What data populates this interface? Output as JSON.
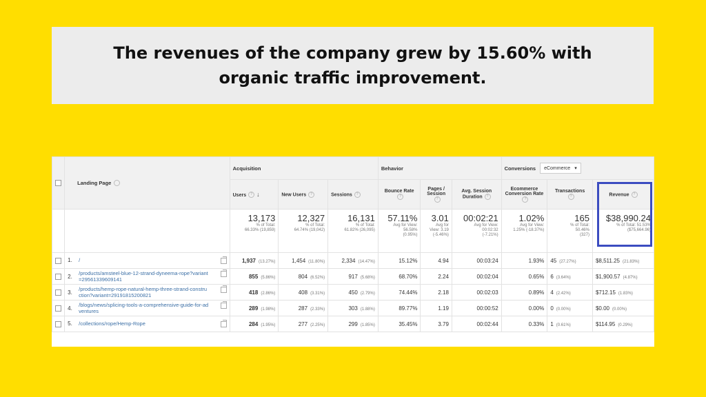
{
  "headline": "The revenues of the company grew by 15.60% with organic traffic improvement.",
  "colors": {
    "background": "#FFDE00",
    "highlight_box": "#3b4cc0",
    "link": "#3a6ea5"
  },
  "table": {
    "landing_page_header": "Landing Page",
    "groups": {
      "acquisition": "Acquisition",
      "behavior": "Behavior",
      "conversions": "Conversions"
    },
    "conversions_select": "eCommerce",
    "columns": {
      "users": "Users",
      "new_users": "New Users",
      "sessions": "Sessions",
      "bounce_rate": "Bounce Rate",
      "pages_session": "Pages / Session",
      "avg_session": "Avg. Session Duration",
      "ecom_rate": "Ecommerce Conversion Rate",
      "transactions": "Transactions",
      "revenue": "Revenue"
    },
    "totals": {
      "users": {
        "value": "13,173",
        "sub1": "% of Total:",
        "sub2": "66.33% (19,859)"
      },
      "new_users": {
        "value": "12,327",
        "sub1": "% of Total:",
        "sub2": "64.74% (19,042)"
      },
      "sessions": {
        "value": "16,131",
        "sub1": "% of Total:",
        "sub2": "61.82% (26,095)"
      },
      "bounce_rate": {
        "value": "57.11%",
        "sub1": "Avg for View:",
        "sub2": "56.58%",
        "sub3": "(0.95%)"
      },
      "pages_session": {
        "value": "3.01",
        "sub1": "Avg for",
        "sub2": "View: 3.19",
        "sub3": "(-5.46%)"
      },
      "avg_session": {
        "value": "00:02:21",
        "sub1": "Avg for View:",
        "sub2": "00:02:32",
        "sub3": "(-7.21%)"
      },
      "ecom_rate": {
        "value": "1.02%",
        "sub1": "Avg for View:",
        "sub2": "1.25% (-18.37%)"
      },
      "transactions": {
        "value": "165",
        "sub1": "% of Total:",
        "sub2": "50.46%",
        "sub3": "(327)"
      },
      "revenue": {
        "value": "$38,990.24",
        "sub1": "% of Total: 51.53%",
        "sub2": "($75,664.96)"
      }
    },
    "rows": [
      {
        "idx": "1.",
        "page": "/",
        "users": "1,937",
        "users_pct": "(13.27%)",
        "new_users": "1,454",
        "new_users_pct": "(11.80%)",
        "sessions": "2,334",
        "sessions_pct": "(14.47%)",
        "bounce": "15.12%",
        "pages": "4.94",
        "duration": "00:03:24",
        "ecom": "1.93%",
        "trans": "45",
        "trans_pct": "(27.27%)",
        "revenue": "$8,511.25",
        "revenue_pct": "(21.83%)"
      },
      {
        "idx": "2.",
        "page": "/products/amsteel-blue-12-strand-dyneema-rope?variant=29561339609141",
        "users": "855",
        "users_pct": "(5.86%)",
        "new_users": "804",
        "new_users_pct": "(6.52%)",
        "sessions": "917",
        "sessions_pct": "(5.68%)",
        "bounce": "68.70%",
        "pages": "2.24",
        "duration": "00:02:04",
        "ecom": "0.65%",
        "trans": "6",
        "trans_pct": "(3.64%)",
        "revenue": "$1,900.57",
        "revenue_pct": "(4.87%)"
      },
      {
        "idx": "3.",
        "page": "/products/hemp-rope-natural-hemp-three-strand-construction?variant=29191815200821",
        "users": "418",
        "users_pct": "(2.86%)",
        "new_users": "408",
        "new_users_pct": "(3.31%)",
        "sessions": "450",
        "sessions_pct": "(2.79%)",
        "bounce": "74.44%",
        "pages": "2.18",
        "duration": "00:02:03",
        "ecom": "0.89%",
        "trans": "4",
        "trans_pct": "(2.42%)",
        "revenue": "$712.15",
        "revenue_pct": "(1.83%)"
      },
      {
        "idx": "4.",
        "page": "/blogs/news/splicing-tools-a-comprehensive-guide-for-adventures",
        "users": "289",
        "users_pct": "(1.98%)",
        "new_users": "287",
        "new_users_pct": "(2.33%)",
        "sessions": "303",
        "sessions_pct": "(1.88%)",
        "bounce": "89.77%",
        "pages": "1.19",
        "duration": "00:00:52",
        "ecom": "0.00%",
        "trans": "0",
        "trans_pct": "(0.00%)",
        "revenue": "$0.00",
        "revenue_pct": "(0.00%)"
      },
      {
        "idx": "5.",
        "page": "/collections/rope/Hemp-Rope",
        "users": "284",
        "users_pct": "(1.95%)",
        "new_users": "277",
        "new_users_pct": "(2.25%)",
        "sessions": "299",
        "sessions_pct": "(1.85%)",
        "bounce": "35.45%",
        "pages": "3.79",
        "duration": "00:02:44",
        "ecom": "0.33%",
        "trans": "1",
        "trans_pct": "(0.61%)",
        "revenue": "$114.95",
        "revenue_pct": "(0.29%)"
      }
    ]
  }
}
